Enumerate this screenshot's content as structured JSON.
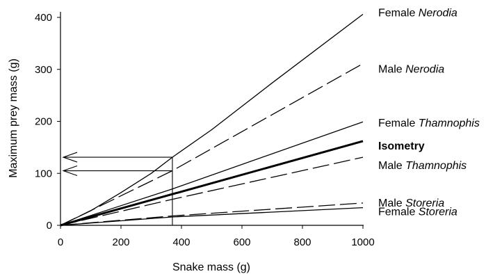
{
  "chart_data": {
    "type": "line",
    "title": "",
    "xlabel": "Snake mass (g)",
    "ylabel": "Maximum prey mass (g)",
    "xlim": [
      0,
      1000
    ],
    "ylim": [
      0,
      400
    ],
    "xticks": [
      "0",
      "200",
      "400",
      "600",
      "800",
      "1000"
    ],
    "yticks": [
      "0",
      "100",
      "200",
      "300",
      "400"
    ],
    "grid": false,
    "legend": "direct labels at right end of lines",
    "series": [
      {
        "label_prefix": "Female ",
        "label_species": "Nerodia",
        "bold": false,
        "style": "solid",
        "width": 1.3,
        "x": [
          0,
          100,
          200,
          300,
          370,
          500,
          700,
          1000
        ],
        "y": [
          0,
          28,
          63,
          100,
          131,
          184,
          274,
          406
        ]
      },
      {
        "label_prefix": "Male ",
        "label_species": "Nerodia",
        "bold": false,
        "style": "dashed",
        "width": 1.3,
        "x": [
          0,
          370,
          1000
        ],
        "y": [
          0,
          105,
          311
        ]
      },
      {
        "label_prefix": "Female ",
        "label_species": "Thamnophis",
        "bold": false,
        "style": "solid",
        "width": 1.3,
        "x": [
          0,
          370,
          1000
        ],
        "y": [
          0,
          70,
          199
        ]
      },
      {
        "label_prefix": "Isometry",
        "label_species": "",
        "bold": true,
        "style": "solid",
        "width": 3,
        "x": [
          0,
          1000
        ],
        "y": [
          0,
          162
        ]
      },
      {
        "label_prefix": "Male ",
        "label_species": "Thamnophis",
        "bold": false,
        "style": "dashed",
        "width": 1.3,
        "x": [
          0,
          370,
          1000
        ],
        "y": [
          0,
          50,
          131
        ]
      },
      {
        "label_prefix": "Male ",
        "label_species": "Storeria",
        "bold": false,
        "style": "dashed",
        "width": 1.3,
        "x": [
          0,
          370,
          1000
        ],
        "y": [
          0,
          18,
          43
        ]
      },
      {
        "label_prefix": "Female ",
        "label_species": "Storeria",
        "bold": false,
        "style": "solid",
        "width": 1.3,
        "x": [
          0,
          370,
          1000
        ],
        "y": [
          0,
          16,
          34
        ]
      }
    ],
    "annotations": {
      "reference_x": 370,
      "arrows_to_y_axis": [
        131,
        105
      ]
    }
  }
}
